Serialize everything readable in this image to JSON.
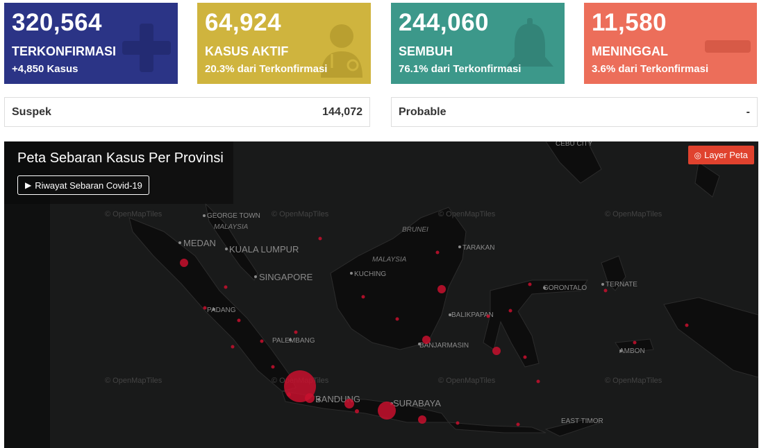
{
  "cards": [
    {
      "value": "320,564",
      "label": "TERKONFIRMASI",
      "sub": "+4,850 Kasus",
      "icon": "plus-icon",
      "color": "#2b3486"
    },
    {
      "value": "64,924",
      "label": "KASUS AKTIF",
      "sub": "20.3% dari Terkonfirmasi",
      "icon": "doctor-icon",
      "color": "#cfb43e"
    },
    {
      "value": "244,060",
      "label": "SEMBUH",
      "sub": "76.1% dari Terkonfirmasi",
      "icon": "bell-icon",
      "color": "#3c988a"
    },
    {
      "value": "11,580",
      "label": "MENINGGAL",
      "sub": "3.6% dari Terkonfirmasi",
      "icon": "minus-icon",
      "color": "#ec6e5a"
    }
  ],
  "stats": [
    {
      "name": "Suspek",
      "value": "144,072"
    },
    {
      "name": "Probable",
      "value": "-"
    }
  ],
  "map": {
    "title": "Peta Sebaran Kasus Per Provinsi",
    "history_button": "Riwayat Sebaran Covid-19",
    "layer_button": "Layer Peta",
    "watermark": "© OpenMapTiles",
    "cities": [
      "MEDAN",
      "KUALA LUMPUR",
      "SINGAPORE",
      "PADANG",
      "PALEMBANG",
      "BANDUNG",
      "SURABAYA",
      "KUCHING",
      "BANJARMASIN",
      "BALIKPAPAN",
      "TARAKAN",
      "GORONTALO",
      "TERNATE",
      "AMBON",
      "GEORGE TOWN",
      "CEBU CITY",
      "EAST TIMOR"
    ],
    "countries": [
      "MALAYSIA",
      "BRUNEI",
      "MALAYSIA"
    ]
  }
}
